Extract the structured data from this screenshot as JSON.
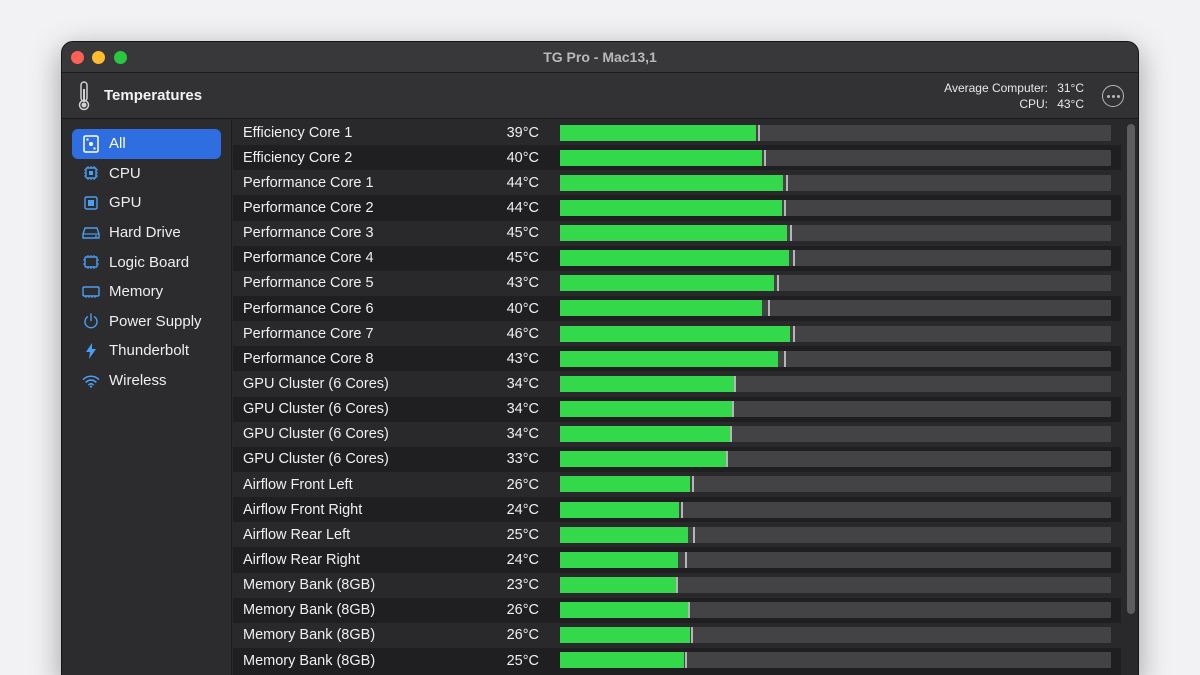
{
  "window": {
    "title": "TG Pro - Mac13,1"
  },
  "toolbar": {
    "section_title": "Temperatures",
    "average_label": "Average Computer:",
    "average_value": "31°C",
    "cpu_label": "CPU:",
    "cpu_value": "43°C"
  },
  "sidebar": {
    "items": [
      {
        "label": "All",
        "icon": "all-sensors-icon",
        "active": true
      },
      {
        "label": "CPU",
        "icon": "cpu-chip-icon",
        "active": false
      },
      {
        "label": "GPU",
        "icon": "gpu-chip-icon",
        "active": false
      },
      {
        "label": "Hard Drive",
        "icon": "hard-drive-icon",
        "active": false
      },
      {
        "label": "Logic Board",
        "icon": "logic-board-icon",
        "active": false
      },
      {
        "label": "Memory",
        "icon": "memory-icon",
        "active": false
      },
      {
        "label": "Power Supply",
        "icon": "power-icon",
        "active": false
      },
      {
        "label": "Thunderbolt",
        "icon": "thunderbolt-icon",
        "active": false
      },
      {
        "label": "Wireless",
        "icon": "wifi-icon",
        "active": false
      }
    ]
  },
  "sensors": [
    {
      "name": "Efficiency Core 1",
      "temp": "39°C",
      "level": 0.355,
      "peak": 0.36
    },
    {
      "name": "Efficiency Core 2",
      "temp": "40°C",
      "level": 0.366,
      "peak": 0.37
    },
    {
      "name": "Performance Core 1",
      "temp": "44°C",
      "level": 0.405,
      "peak": 0.41
    },
    {
      "name": "Performance Core 2",
      "temp": "44°C",
      "level": 0.402,
      "peak": 0.406
    },
    {
      "name": "Performance Core 3",
      "temp": "45°C",
      "level": 0.412,
      "peak": 0.418
    },
    {
      "name": "Performance Core 4",
      "temp": "45°C",
      "level": 0.415,
      "peak": 0.422
    },
    {
      "name": "Performance Core 5",
      "temp": "43°C",
      "level": 0.388,
      "peak": 0.393
    },
    {
      "name": "Performance Core 6",
      "temp": "40°C",
      "level": 0.366,
      "peak": 0.377
    },
    {
      "name": "Performance Core 7",
      "temp": "46°C",
      "level": 0.418,
      "peak": 0.422
    },
    {
      "name": "Performance Core 8",
      "temp": "43°C",
      "level": 0.395,
      "peak": 0.406
    },
    {
      "name": "GPU Cluster (6 Cores)",
      "temp": "34°C",
      "level": 0.315,
      "peak": 0.315
    },
    {
      "name": "GPU Cluster (6 Cores)",
      "temp": "34°C",
      "level": 0.312,
      "peak": 0.312
    },
    {
      "name": "GPU Cluster (6 Cores)",
      "temp": "34°C",
      "level": 0.309,
      "peak": 0.309
    },
    {
      "name": "GPU Cluster (6 Cores)",
      "temp": "33°C",
      "level": 0.302,
      "peak": 0.302
    },
    {
      "name": "Airflow Front Left",
      "temp": "26°C",
      "level": 0.236,
      "peak": 0.24
    },
    {
      "name": "Airflow Front Right",
      "temp": "24°C",
      "level": 0.216,
      "peak": 0.22
    },
    {
      "name": "Airflow Rear Left",
      "temp": "25°C",
      "level": 0.233,
      "peak": 0.242
    },
    {
      "name": "Airflow Rear Right",
      "temp": "24°C",
      "level": 0.214,
      "peak": 0.227
    },
    {
      "name": "Memory Bank (8GB)",
      "temp": "23°C",
      "level": 0.21,
      "peak": 0.21
    },
    {
      "name": "Memory Bank (8GB)",
      "temp": "26°C",
      "level": 0.233,
      "peak": 0.233
    },
    {
      "name": "Memory Bank (8GB)",
      "temp": "26°C",
      "level": 0.236,
      "peak": 0.238
    },
    {
      "name": "Memory Bank (8GB)",
      "temp": "25°C",
      "level": 0.225,
      "peak": 0.227
    }
  ],
  "colors": {
    "bar_fill": "#34d84b",
    "bar_track": "#434346",
    "accent": "#2f6ee0"
  }
}
